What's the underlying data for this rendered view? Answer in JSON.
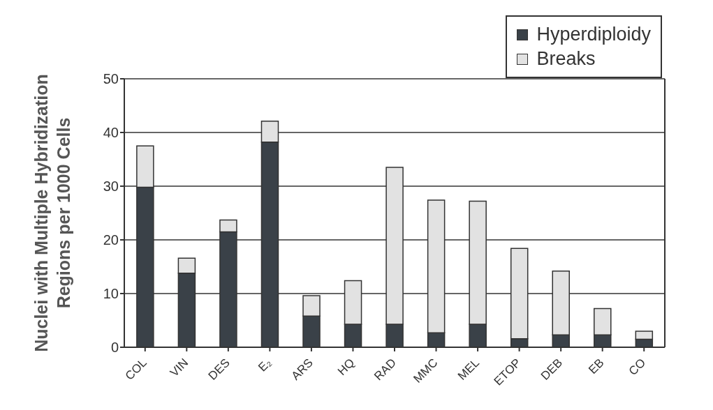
{
  "chart_data": {
    "type": "bar",
    "stacked": true,
    "categories": [
      "COL",
      "VIN",
      "DES",
      "E₂",
      "ARS",
      "HQ",
      "RAD",
      "MMC",
      "MEL",
      "ETOP",
      "DEB",
      "EB",
      "CO"
    ],
    "series": [
      {
        "name": "Hyperdiploidy",
        "color": "#3a4148",
        "values": [
          29.8,
          13.8,
          21.5,
          38.2,
          5.8,
          4.3,
          4.3,
          2.7,
          4.3,
          1.6,
          2.3,
          2.3,
          1.5
        ]
      },
      {
        "name": "Breaks",
        "color": "#e2e2e2",
        "values": [
          7.7,
          2.8,
          2.2,
          3.9,
          3.8,
          8.1,
          29.2,
          24.7,
          22.9,
          16.8,
          11.9,
          4.9,
          1.5
        ]
      }
    ],
    "ylabel": "Nuclei with Multiple Hybridization Regions per 1000 Cells",
    "ylim": [
      0,
      50
    ],
    "yticks": [
      0,
      10,
      20,
      30,
      40,
      50
    ],
    "grid": "y",
    "legend": "top right"
  }
}
